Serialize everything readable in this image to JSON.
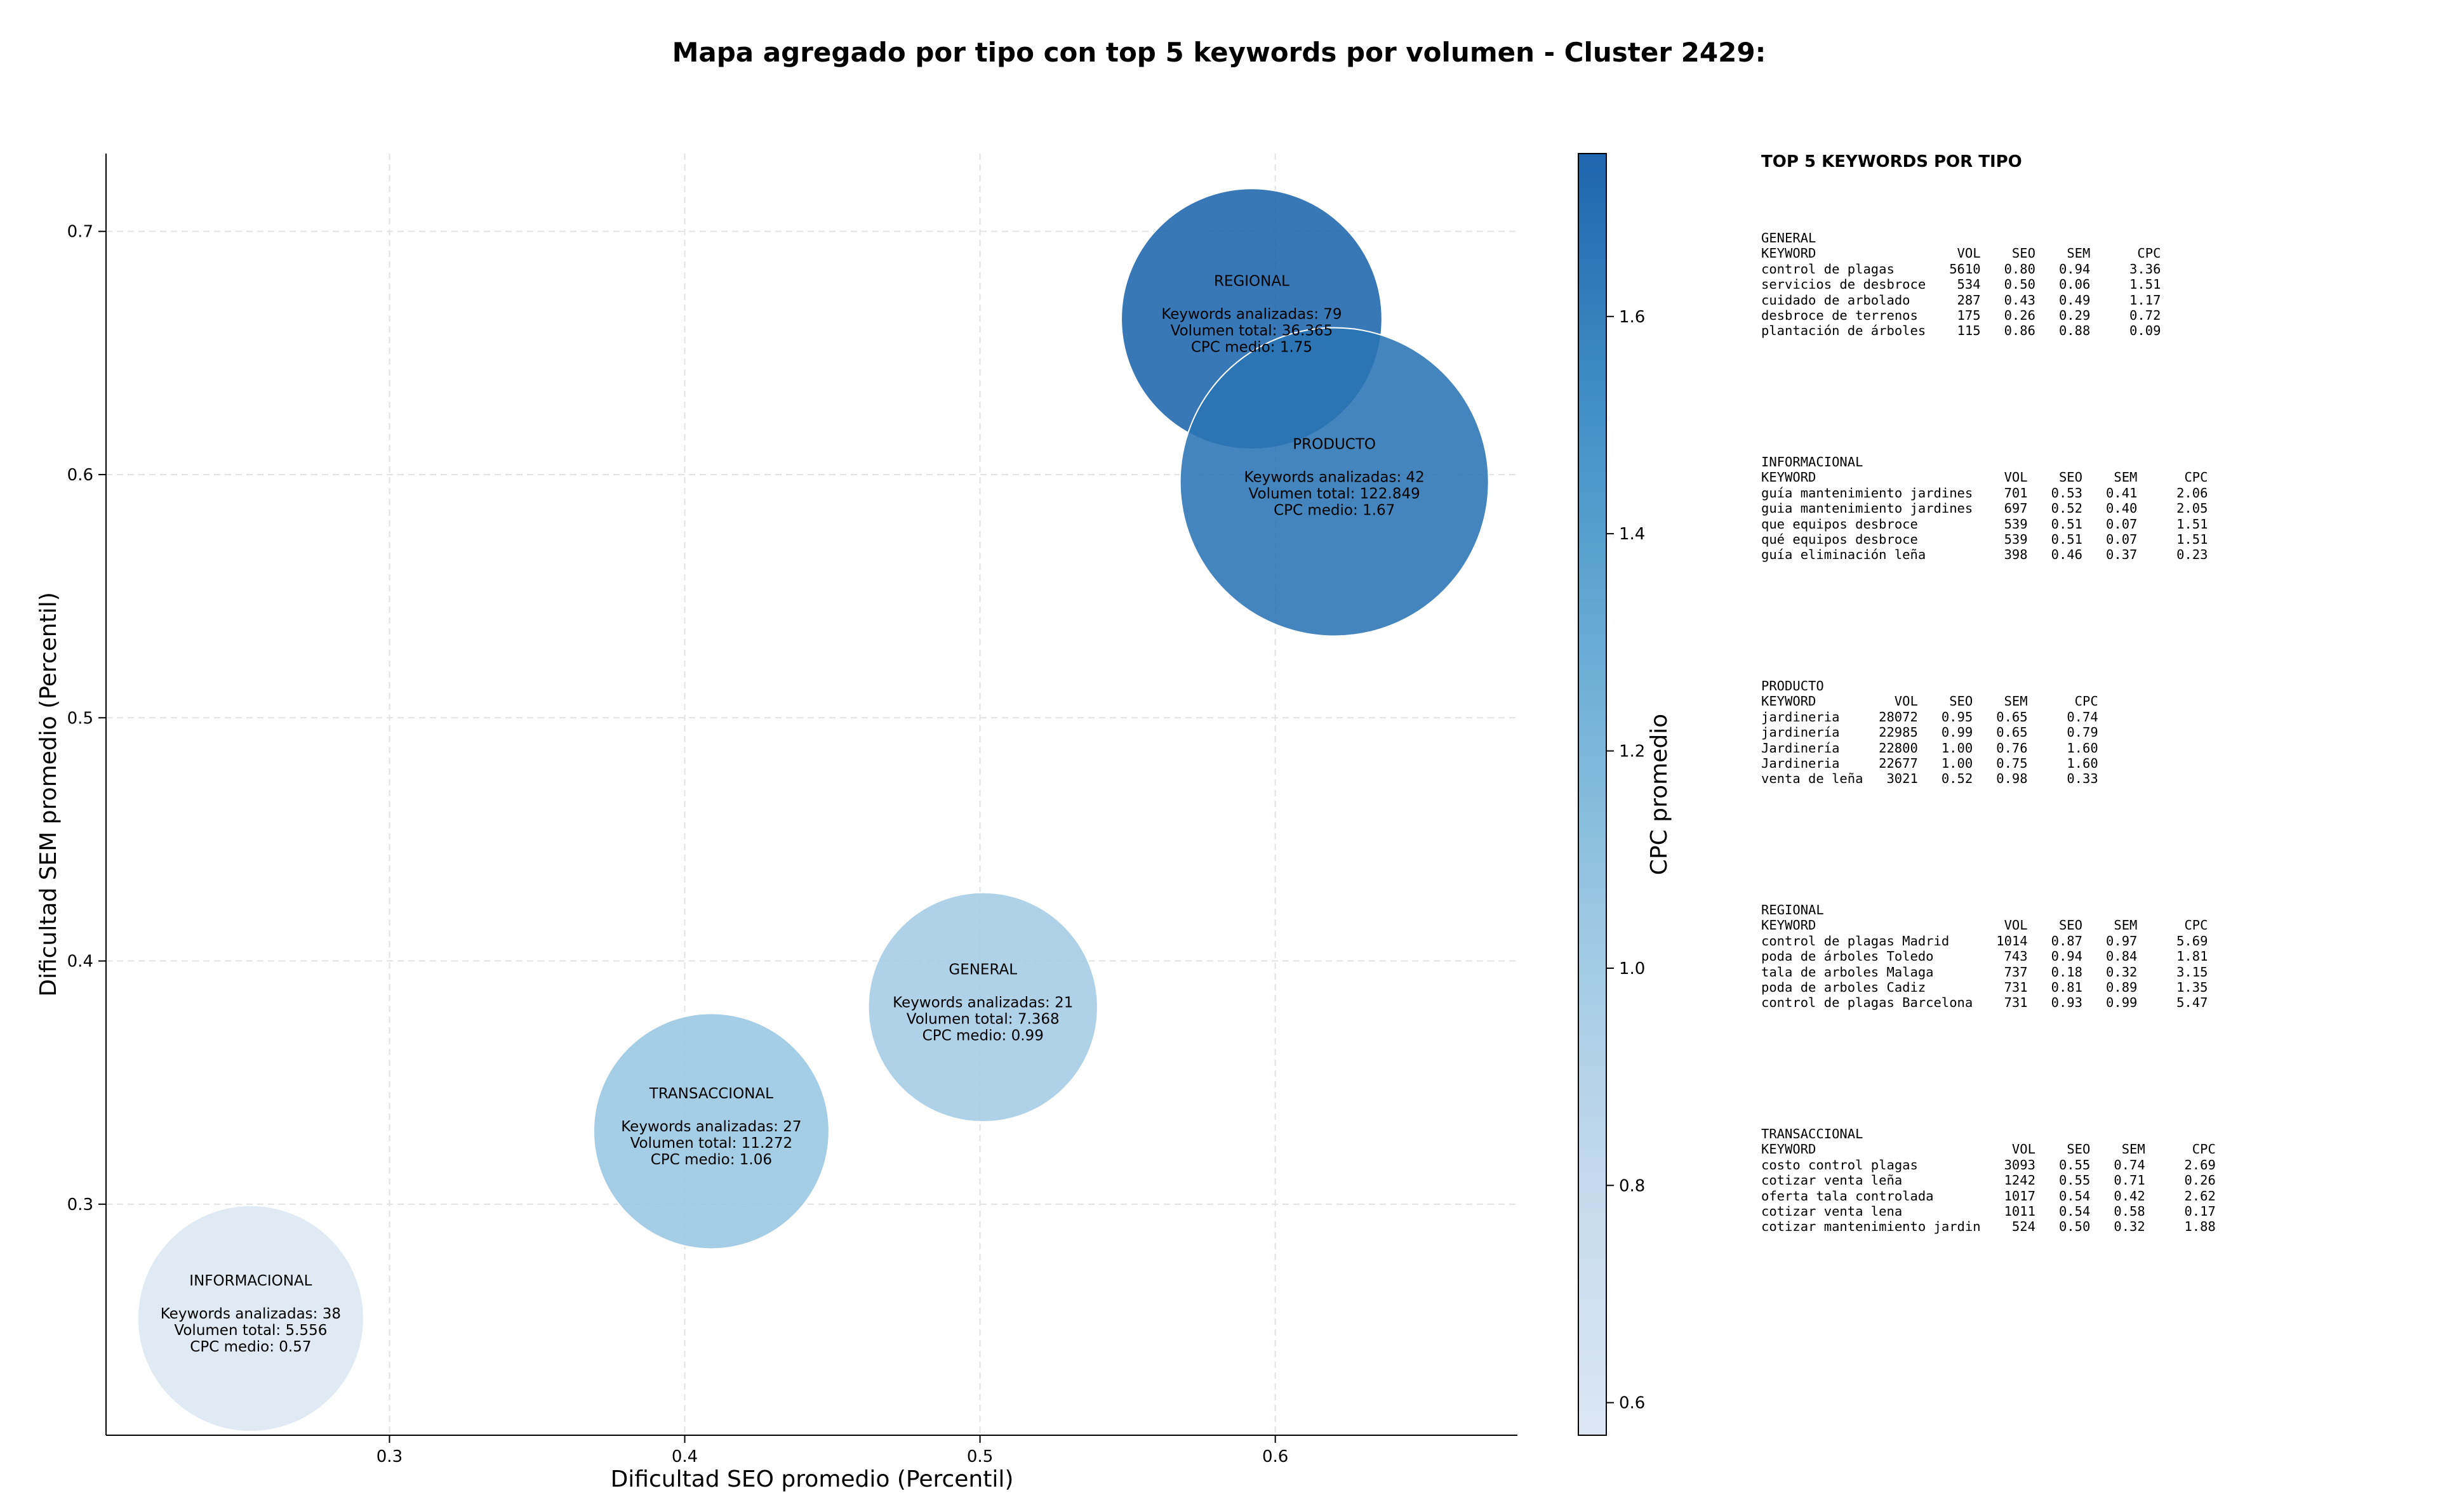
{
  "chart_data": {
    "type": "scatter",
    "title": "Mapa agregado por tipo con top 5 keywords por volumen - Cluster 2429:",
    "xlabel": "Dificultad SEO promedio (Percentil)",
    "ylabel": "Dificultad SEM promedio (Percentil)",
    "xlim": [
      0.204,
      0.682
    ],
    "ylim": [
      0.205,
      0.732
    ],
    "xticks": [
      "0.3",
      "0.4",
      "0.5",
      "0.6"
    ],
    "xtick_values": [
      0.3,
      0.4,
      0.5,
      0.6
    ],
    "yticks": [
      "0.3",
      "0.4",
      "0.5",
      "0.6",
      "0.7"
    ],
    "ytick_values": [
      0.3,
      0.4,
      0.5,
      0.6,
      0.7
    ],
    "grid": true,
    "colorbar": {
      "label": "CPC promedio",
      "range": [
        0.57,
        1.75
      ],
      "ticks": [
        "0.6",
        "0.8",
        "1.0",
        "1.2",
        "1.4",
        "1.6"
      ],
      "tick_values": [
        0.6,
        0.8,
        1.0,
        1.2,
        1.4,
        1.6
      ],
      "colormap": [
        "#dbe7f4",
        "#c4d9ee",
        "#9cc8e2",
        "#6caed6",
        "#4190c6",
        "#1e65ad"
      ]
    },
    "points": [
      {
        "tipo": "REGIONAL",
        "x": 0.592,
        "y": 0.664,
        "cpc": 1.75,
        "volume": 36365,
        "kw_line": "Keywords analizadas: 79",
        "vol_line": "Volumen total: 36.365",
        "cpc_line": "CPC medio: 1.75"
      },
      {
        "tipo": "PRODUCTO",
        "x": 0.62,
        "y": 0.597,
        "cpc": 1.67,
        "volume": 122849,
        "kw_line": "Keywords analizadas: 42",
        "vol_line": "Volumen total: 122.849",
        "cpc_line": "CPC medio: 1.67"
      },
      {
        "tipo": "GENERAL",
        "x": 0.501,
        "y": 0.381,
        "cpc": 0.99,
        "volume": 7368,
        "kw_line": "Keywords analizadas: 21",
        "vol_line": "Volumen total: 7.368",
        "cpc_line": "CPC medio: 0.99"
      },
      {
        "tipo": "TRANSACCIONAL",
        "x": 0.409,
        "y": 0.33,
        "cpc": 1.06,
        "volume": 11272,
        "kw_line": "Keywords analizadas: 27",
        "vol_line": "Volumen total: 11.272",
        "cpc_line": "CPC medio: 1.06"
      },
      {
        "tipo": "INFORMACIONAL",
        "x": 0.253,
        "y": 0.253,
        "cpc": 0.57,
        "volume": 5556,
        "kw_line": "Keywords analizadas: 38",
        "vol_line": "Volumen total: 5.556",
        "cpc_line": "CPC medio: 0.57"
      }
    ]
  },
  "keyword_panel": {
    "title": "TOP 5 KEYWORDS POR TIPO",
    "columns": [
      "KEYWORD",
      "VOL",
      "SEO",
      "SEM",
      "CPC"
    ],
    "groups": [
      {
        "tipo": "GENERAL",
        "rows": [
          [
            "control de plagas",
            "5610",
            "0.80",
            "0.94",
            "3.36"
          ],
          [
            "servicios de desbroce",
            "534",
            "0.50",
            "0.06",
            "1.51"
          ],
          [
            "cuidado de arbolado",
            "287",
            "0.43",
            "0.49",
            "1.17"
          ],
          [
            "desbroce de terrenos",
            "175",
            "0.26",
            "0.29",
            "0.72"
          ],
          [
            "plantación de árboles",
            "115",
            "0.86",
            "0.88",
            "0.09"
          ]
        ]
      },
      {
        "tipo": "INFORMACIONAL",
        "rows": [
          [
            "guía mantenimiento jardines",
            "701",
            "0.53",
            "0.41",
            "2.06"
          ],
          [
            "guia mantenimiento jardines",
            "697",
            "0.52",
            "0.40",
            "2.05"
          ],
          [
            "que equipos desbroce",
            "539",
            "0.51",
            "0.07",
            "1.51"
          ],
          [
            "qué equipos desbroce",
            "539",
            "0.51",
            "0.07",
            "1.51"
          ],
          [
            "guía eliminación leña",
            "398",
            "0.46",
            "0.37",
            "0.23"
          ]
        ]
      },
      {
        "tipo": "PRODUCTO",
        "rows": [
          [
            "jardineria",
            "28072",
            "0.95",
            "0.65",
            "0.74"
          ],
          [
            "jardinería",
            "22985",
            "0.99",
            "0.65",
            "0.79"
          ],
          [
            "Jardinería",
            "22800",
            "1.00",
            "0.76",
            "1.60"
          ],
          [
            "Jardineria",
            "22677",
            "1.00",
            "0.75",
            "1.60"
          ],
          [
            "venta de leña",
            "3021",
            "0.52",
            "0.98",
            "0.33"
          ]
        ]
      },
      {
        "tipo": "REGIONAL",
        "rows": [
          [
            "control de plagas Madrid",
            "1014",
            "0.87",
            "0.97",
            "5.69"
          ],
          [
            "poda de árboles Toledo",
            "743",
            "0.94",
            "0.84",
            "1.81"
          ],
          [
            "tala de arboles Malaga",
            "737",
            "0.18",
            "0.32",
            "3.15"
          ],
          [
            "poda de arboles Cadiz",
            "731",
            "0.81",
            "0.89",
            "1.35"
          ],
          [
            "control de plagas Barcelona",
            "731",
            "0.93",
            "0.99",
            "5.47"
          ]
        ]
      },
      {
        "tipo": "TRANSACCIONAL",
        "rows": [
          [
            "costo control plagas",
            "3093",
            "0.55",
            "0.74",
            "2.69"
          ],
          [
            "cotizar venta leña",
            "1242",
            "0.55",
            "0.71",
            "0.26"
          ],
          [
            "oferta tala controlada",
            "1017",
            "0.54",
            "0.42",
            "2.62"
          ],
          [
            "cotizar venta lena",
            "1011",
            "0.54",
            "0.58",
            "0.17"
          ],
          [
            "cotizar mantenimiento jardin",
            "524",
            "0.50",
            "0.32",
            "1.88"
          ]
        ]
      }
    ]
  }
}
